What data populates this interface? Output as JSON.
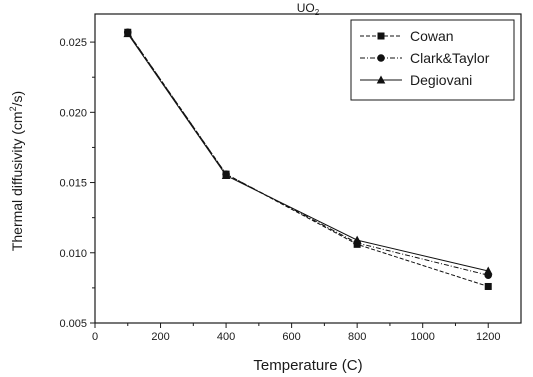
{
  "chart_data": {
    "type": "line",
    "title": "UO",
    "title_subscript": "2",
    "xlabel": "Temperature (C)",
    "ylabel_main": "Thermal diffusivity (cm",
    "ylabel_superscript": "2",
    "ylabel_end": "/s)",
    "xlim": [
      0,
      1300
    ],
    "ylim": [
      0.005,
      0.027
    ],
    "x_ticks": [
      0,
      200,
      400,
      600,
      800,
      1000,
      1200
    ],
    "x_tick_labels": [
      "0",
      "200",
      "400",
      "600",
      "800",
      "1000",
      "1200"
    ],
    "y_ticks": [
      0.005,
      0.01,
      0.015,
      0.02,
      0.025
    ],
    "y_tick_labels": [
      "0.005",
      "0.010",
      "0.015",
      "0.020",
      "0.025"
    ],
    "grid": false,
    "legend_position": "top-right",
    "series": [
      {
        "name": "Cowan",
        "marker": "square",
        "dash": "dashed",
        "color": "#111111",
        "x": [
          100,
          400,
          800,
          1200
        ],
        "y": [
          0.0257,
          0.0156,
          0.0106,
          0.0076
        ]
      },
      {
        "name": "Clark&Taylor",
        "marker": "circle",
        "dash": "dashdot",
        "color": "#111111",
        "x": [
          100,
          400,
          800,
          1200
        ],
        "y": [
          0.0257,
          0.0156,
          0.0107,
          0.0084
        ]
      },
      {
        "name": "Degiovani",
        "marker": "triangle",
        "dash": "solid",
        "color": "#111111",
        "x": [
          100,
          400,
          800,
          1200
        ],
        "y": [
          0.0256,
          0.0155,
          0.0109,
          0.0087
        ]
      }
    ]
  }
}
